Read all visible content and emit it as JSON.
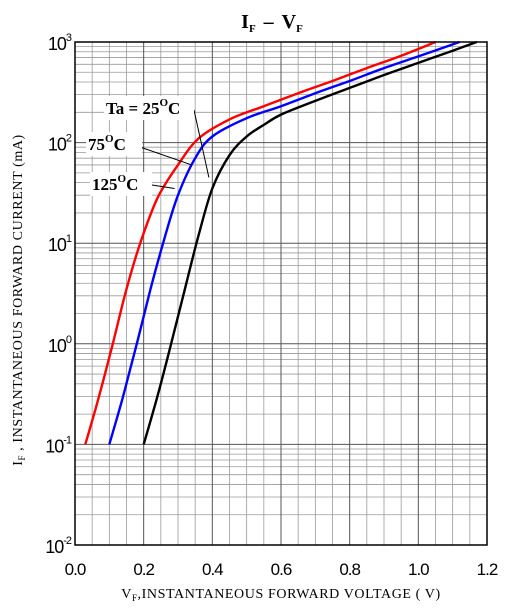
{
  "chart_data": {
    "type": "line",
    "title": {
      "main": "I",
      "sub1": "F",
      "dash": "–",
      "main2": "V",
      "sub2": "F"
    },
    "xlabel": {
      "pre": "V",
      "sub": "F",
      "post": ",INSTANTANEOUS FORWARD VOLTAGE ( V)"
    },
    "ylabel": {
      "pre": "I",
      "sub": "F",
      "post": " , INSTANTANEOUS FORWARD CURRENT (mA)"
    },
    "xlim": [
      0,
      1.2
    ],
    "ylim": [
      0.01,
      1000
    ],
    "y_scale": "log",
    "grid": true,
    "x_ticks": [
      "0.0",
      "0.2",
      "0.4",
      "0.6",
      "0.8",
      "1.0",
      "1.2"
    ],
    "y_ticks": [
      {
        "base": "10",
        "exp": "-2"
      },
      {
        "base": "10",
        "exp": "-1"
      },
      {
        "base": "10",
        "exp": "0"
      },
      {
        "base": "10",
        "exp": "1"
      },
      {
        "base": "10",
        "exp": "2"
      },
      {
        "base": "10",
        "exp": "3"
      }
    ],
    "series": [
      {
        "name": "Ta = 25°C",
        "color": "#000000",
        "x": [
          0.2,
          0.24,
          0.28,
          0.32,
          0.36,
          0.4,
          0.45,
          0.5,
          0.55,
          0.6,
          0.7,
          0.8,
          0.9,
          1.0,
          1.1,
          1.17
        ],
        "y": [
          0.1,
          0.3,
          1.0,
          3.5,
          12,
          35,
          75,
          115,
          150,
          190,
          260,
          350,
          470,
          620,
          820,
          1000
        ]
      },
      {
        "name": "75°C",
        "color": "#0000ff",
        "x": [
          0.1,
          0.14,
          0.18,
          0.22,
          0.26,
          0.3,
          0.35,
          0.4,
          0.5,
          0.6,
          0.7,
          0.8,
          0.9,
          1.0,
          1.12
        ],
        "y": [
          0.1,
          0.3,
          1.0,
          3.5,
          11,
          30,
          70,
          115,
          175,
          230,
          310,
          410,
          550,
          720,
          1000
        ]
      },
      {
        "name": "125°C",
        "color": "#ff0000",
        "x": [
          0.03,
          0.07,
          0.11,
          0.15,
          0.19,
          0.24,
          0.3,
          0.36,
          0.45,
          0.55,
          0.65,
          0.75,
          0.85,
          0.95,
          1.05
        ],
        "y": [
          0.1,
          0.3,
          1.0,
          3.5,
          10,
          28,
          60,
          110,
          170,
          230,
          310,
          410,
          550,
          730,
          1000
        ]
      }
    ],
    "annotations": [
      {
        "base": "Ta = 25",
        "sup": "O",
        "unit": "C"
      },
      {
        "base": "75",
        "sup": "O",
        "unit": "C"
      },
      {
        "base": "125",
        "sup": "O",
        "unit": "C"
      }
    ]
  }
}
